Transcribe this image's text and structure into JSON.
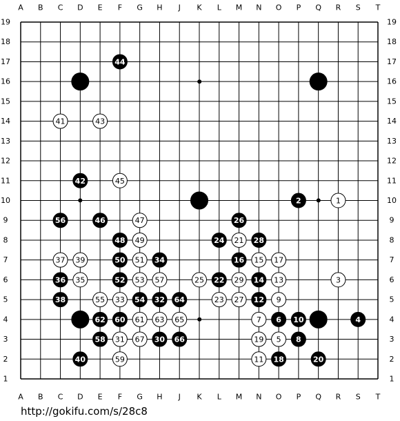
{
  "board": {
    "columns": [
      "A",
      "B",
      "C",
      "D",
      "E",
      "F",
      "G",
      "H",
      "J",
      "K",
      "L",
      "M",
      "N",
      "O",
      "P",
      "Q",
      "R",
      "S",
      "T"
    ],
    "rows": [
      19,
      18,
      17,
      16,
      15,
      14,
      13,
      12,
      11,
      10,
      9,
      8,
      7,
      6,
      5,
      4,
      3,
      2,
      1
    ],
    "stones": [
      {
        "color": "black",
        "col": "D",
        "row": 16
      },
      {
        "color": "black",
        "col": "Q",
        "row": 16
      },
      {
        "color": "black",
        "col": "K",
        "row": 10
      },
      {
        "color": "black",
        "col": "D",
        "row": 4
      },
      {
        "color": "black",
        "col": "Q",
        "row": 4
      },
      {
        "color": "white",
        "col": "R",
        "row": 10,
        "number": 1
      },
      {
        "color": "black",
        "col": "P",
        "row": 10,
        "number": 2
      },
      {
        "color": "white",
        "col": "R",
        "row": 6,
        "number": 3
      },
      {
        "color": "black",
        "col": "S",
        "row": 4,
        "number": 4
      },
      {
        "color": "white",
        "col": "O",
        "row": 3,
        "number": 5
      },
      {
        "color": "black",
        "col": "O",
        "row": 4,
        "number": 6
      },
      {
        "color": "white",
        "col": "N",
        "row": 4,
        "number": 7
      },
      {
        "color": "black",
        "col": "P",
        "row": 3,
        "number": 8
      },
      {
        "color": "white",
        "col": "O",
        "row": 5,
        "number": 9
      },
      {
        "color": "black",
        "col": "P",
        "row": 4,
        "number": 10
      },
      {
        "color": "white",
        "col": "N",
        "row": 2,
        "number": 11
      },
      {
        "color": "black",
        "col": "N",
        "row": 5,
        "number": 12
      },
      {
        "color": "white",
        "col": "O",
        "row": 6,
        "number": 13
      },
      {
        "color": "black",
        "col": "N",
        "row": 6,
        "number": 14
      },
      {
        "color": "white",
        "col": "N",
        "row": 7,
        "number": 15
      },
      {
        "color": "black",
        "col": "M",
        "row": 7,
        "number": 16
      },
      {
        "color": "white",
        "col": "O",
        "row": 7,
        "number": 17
      },
      {
        "color": "black",
        "col": "O",
        "row": 2,
        "number": 18
      },
      {
        "color": "white",
        "col": "N",
        "row": 3,
        "number": 19
      },
      {
        "color": "black",
        "col": "Q",
        "row": 2,
        "number": 20
      },
      {
        "color": "white",
        "col": "M",
        "row": 8,
        "number": 21
      },
      {
        "color": "black",
        "col": "L",
        "row": 6,
        "number": 22
      },
      {
        "color": "white",
        "col": "L",
        "row": 5,
        "number": 23
      },
      {
        "color": "black",
        "col": "L",
        "row": 8,
        "number": 24
      },
      {
        "color": "white",
        "col": "K",
        "row": 6,
        "number": 25
      },
      {
        "color": "black",
        "col": "M",
        "row": 9,
        "number": 26
      },
      {
        "color": "white",
        "col": "M",
        "row": 5,
        "number": 27
      },
      {
        "color": "black",
        "col": "N",
        "row": 8,
        "number": 28
      },
      {
        "color": "white",
        "col": "M",
        "row": 6,
        "number": 29
      },
      {
        "color": "black",
        "col": "H",
        "row": 3,
        "number": 30
      },
      {
        "color": "white",
        "col": "F",
        "row": 3,
        "number": 31
      },
      {
        "color": "black",
        "col": "H",
        "row": 5,
        "number": 32
      },
      {
        "color": "white",
        "col": "F",
        "row": 5,
        "number": 33
      },
      {
        "color": "black",
        "col": "H",
        "row": 7,
        "number": 34
      },
      {
        "color": "white",
        "col": "D",
        "row": 6,
        "number": 35
      },
      {
        "color": "black",
        "col": "C",
        "row": 6,
        "number": 36
      },
      {
        "color": "white",
        "col": "C",
        "row": 7,
        "number": 37
      },
      {
        "color": "black",
        "col": "C",
        "row": 5,
        "number": 38
      },
      {
        "color": "white",
        "col": "D",
        "row": 7,
        "number": 39
      },
      {
        "color": "black",
        "col": "D",
        "row": 2,
        "number": 40
      },
      {
        "color": "white",
        "col": "C",
        "row": 14,
        "number": 41
      },
      {
        "color": "black",
        "col": "D",
        "row": 11,
        "number": 42
      },
      {
        "color": "white",
        "col": "E",
        "row": 14,
        "number": 43
      },
      {
        "color": "black",
        "col": "F",
        "row": 17,
        "number": 44
      },
      {
        "color": "white",
        "col": "F",
        "row": 11,
        "number": 45
      },
      {
        "color": "black",
        "col": "E",
        "row": 9,
        "number": 46
      },
      {
        "color": "white",
        "col": "G",
        "row": 9,
        "number": 47
      },
      {
        "color": "black",
        "col": "F",
        "row": 8,
        "number": 48
      },
      {
        "color": "white",
        "col": "G",
        "row": 8,
        "number": 49
      },
      {
        "color": "black",
        "col": "F",
        "row": 7,
        "number": 50
      },
      {
        "color": "white",
        "col": "G",
        "row": 7,
        "number": 51
      },
      {
        "color": "black",
        "col": "F",
        "row": 6,
        "number": 52
      },
      {
        "color": "white",
        "col": "G",
        "row": 6,
        "number": 53
      },
      {
        "color": "black",
        "col": "G",
        "row": 5,
        "number": 54
      },
      {
        "color": "white",
        "col": "E",
        "row": 5,
        "number": 55
      },
      {
        "color": "black",
        "col": "C",
        "row": 9,
        "number": 56
      },
      {
        "color": "white",
        "col": "H",
        "row": 6,
        "number": 57
      },
      {
        "color": "black",
        "col": "E",
        "row": 3,
        "number": 58
      },
      {
        "color": "white",
        "col": "F",
        "row": 2,
        "number": 59
      },
      {
        "color": "black",
        "col": "F",
        "row": 4,
        "number": 60
      },
      {
        "color": "white",
        "col": "G",
        "row": 4,
        "number": 61
      },
      {
        "color": "black",
        "col": "E",
        "row": 4,
        "number": 62
      },
      {
        "color": "white",
        "col": "H",
        "row": 4,
        "number": 63
      },
      {
        "color": "black",
        "col": "J",
        "row": 5,
        "number": 64
      },
      {
        "color": "white",
        "col": "J",
        "row": 4,
        "number": 65
      },
      {
        "color": "black",
        "col": "J",
        "row": 3,
        "number": 66
      },
      {
        "color": "white",
        "col": "G",
        "row": 3,
        "number": 67
      }
    ]
  },
  "footer": "http://gokifu.com/s/28c8"
}
